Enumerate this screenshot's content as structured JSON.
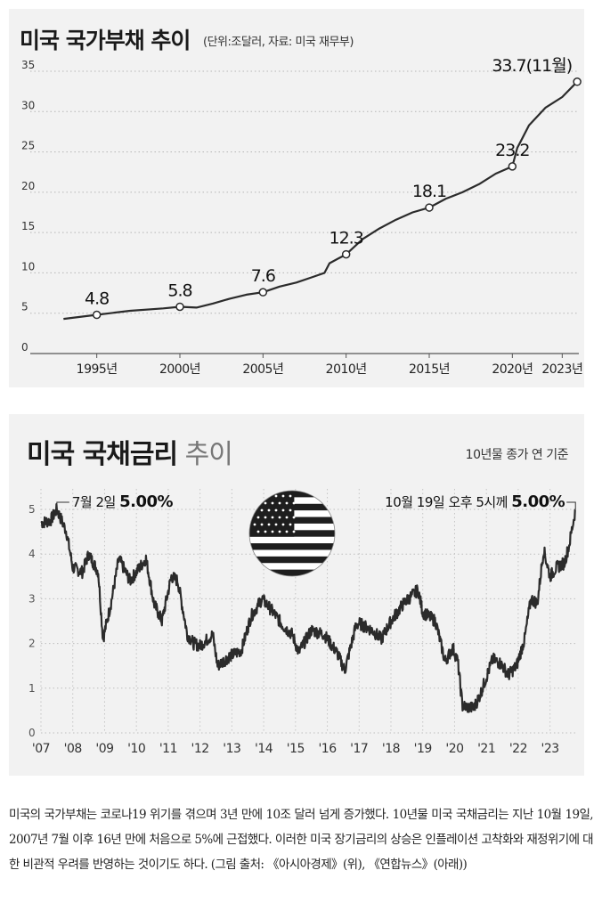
{
  "chart_data": [
    {
      "type": "line",
      "title": "미국 국가부채 추이",
      "subtitle": "(단위:조달러, 자료: 미국 재무부)",
      "y_ticks": [
        "0",
        "5",
        "10",
        "15",
        "20",
        "25",
        "30",
        "35"
      ],
      "ylim": [
        0,
        35
      ],
      "xlim": [
        1991,
        2024
      ],
      "x_tick_labels": [
        "1995년",
        "2000년",
        "2005년",
        "2010년",
        "2015년",
        "2020년",
        "2023년"
      ],
      "x_tick_years": [
        1995,
        2000,
        2005,
        2010,
        2015,
        2020,
        2023
      ],
      "series": [
        {
          "name": "미국 국가부채",
          "x": [
            1993,
            1995,
            1997,
            1999,
            2000,
            2001,
            2002,
            2003,
            2004,
            2005,
            2006,
            2007,
            2008,
            2008.7,
            2009,
            2010,
            2011,
            2012,
            2013,
            2014,
            2015,
            2016,
            2017,
            2018,
            2019,
            2020,
            2020.3,
            2020.5,
            2021,
            2022,
            2023,
            2023.9
          ],
          "values": [
            4.3,
            4.8,
            5.3,
            5.6,
            5.8,
            5.7,
            6.2,
            6.8,
            7.3,
            7.6,
            8.3,
            8.8,
            9.5,
            10.0,
            11.2,
            12.3,
            14.2,
            15.5,
            16.6,
            17.5,
            18.1,
            19.2,
            20.0,
            21.0,
            22.3,
            23.2,
            25.5,
            26.3,
            28.3,
            30.5,
            31.8,
            33.7
          ]
        }
      ],
      "annotations": [
        {
          "year": 1995,
          "value": 4.8,
          "label": "4.8"
        },
        {
          "year": 2000,
          "value": 5.8,
          "label": "5.8"
        },
        {
          "year": 2005,
          "value": 7.6,
          "label": "7.6"
        },
        {
          "year": 2010,
          "value": 12.3,
          "label": "12.3"
        },
        {
          "year": 2015,
          "value": 18.1,
          "label": "18.1"
        },
        {
          "year": 2020,
          "value": 23.2,
          "label": "23.2"
        },
        {
          "year": 2023.9,
          "value": 33.7,
          "label": "33.7(11월)"
        }
      ]
    },
    {
      "type": "line",
      "title_bold": "미국 국채금리",
      "title_light": "추이",
      "subtitle": "10년물 종가 연 기준",
      "y_ticks": [
        "0",
        "1",
        "2",
        "3",
        "4",
        "5"
      ],
      "ylim": [
        0,
        5.3
      ],
      "xlim": [
        2007,
        2023.85
      ],
      "x_tick_labels": [
        "'07",
        "'08",
        "'09",
        "'10",
        "'11",
        "'12",
        "'13",
        "'14",
        "'15",
        "'16",
        "'17",
        "'18",
        "'19",
        "'20",
        "'21",
        "'22",
        "'23"
      ],
      "series": [
        {
          "name": "10년물 국채금리",
          "x": [
            2007.0,
            2007.3,
            2007.5,
            2007.8,
            2008.0,
            2008.3,
            2008.5,
            2008.8,
            2008.95,
            2009.2,
            2009.45,
            2009.8,
            2010.2,
            2010.3,
            2010.55,
            2010.8,
            2011.1,
            2011.3,
            2011.6,
            2011.8,
            2012.0,
            2012.4,
            2012.55,
            2012.9,
            2013.3,
            2013.6,
            2013.95,
            2014.3,
            2014.6,
            2014.9,
            2015.1,
            2015.5,
            2015.9,
            2016.3,
            2016.55,
            2016.9,
            2017.0,
            2017.4,
            2017.7,
            2018.0,
            2018.4,
            2018.85,
            2019.0,
            2019.4,
            2019.7,
            2019.95,
            2020.1,
            2020.25,
            2020.6,
            2020.8,
            2021.2,
            2021.45,
            2021.7,
            2021.95,
            2022.2,
            2022.4,
            2022.6,
            2022.8,
            2023.0,
            2023.2,
            2023.45,
            2023.6,
            2023.8
          ],
          "values": [
            4.7,
            4.75,
            5.0,
            4.5,
            3.7,
            3.6,
            4.0,
            3.6,
            2.1,
            2.9,
            3.9,
            3.4,
            3.8,
            3.9,
            2.9,
            2.5,
            3.5,
            3.4,
            2.2,
            2.0,
            1.95,
            2.2,
            1.5,
            1.7,
            1.85,
            2.6,
            3.0,
            2.7,
            2.4,
            2.2,
            1.8,
            2.3,
            2.2,
            1.8,
            1.4,
            2.4,
            2.45,
            2.3,
            2.1,
            2.5,
            2.9,
            3.2,
            2.7,
            2.5,
            1.6,
            1.9,
            1.6,
            0.6,
            0.55,
            0.85,
            1.65,
            1.55,
            1.3,
            1.5,
            2.1,
            3.0,
            2.9,
            4.1,
            3.5,
            3.7,
            3.8,
            4.2,
            5.0
          ]
        }
      ],
      "annotations": [
        {
          "label_plain": "7월 2일 ",
          "label_bold": "5.00%"
        },
        {
          "label_plain": "10월 19일 오후 5시께 ",
          "label_bold": "5.00%"
        }
      ]
    }
  ],
  "flag_icon": "us-flag-icon",
  "caption": "미국의 국가부채는 코로나19 위기를 겪으며 3년 만에 10조 달러 넘게 증가했다. 10년물 미국 국채금리는 지난 10월 19일, 2007년 7월 이후 16년 만에 처음으로 5%에 근접했다. 이러한 미국 장기금리의 상승은 인플레이션 고착화와 재정위기에 대한 비관적 우려를 반영하는 것이기도 하다. (그림 출처: 《아시아경제》(위), 《연합뉴스》(아래))",
  "colors": {
    "line": "#2b2b2b",
    "grid": "#b5b5b5",
    "panel": "#f2f2f2",
    "marker_fill": "#ffffff"
  }
}
